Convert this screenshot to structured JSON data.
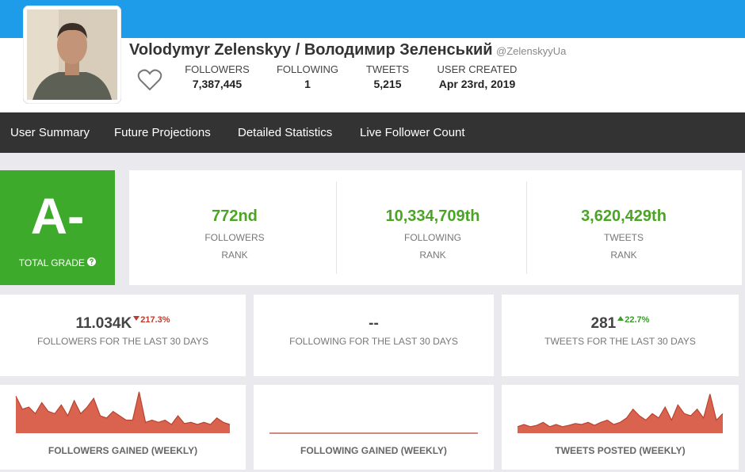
{
  "profile": {
    "name": "Volodymyr Zelenskyy / Володимир Зеленський",
    "handle": "@ZelenskyyUa",
    "stats": [
      {
        "label": "FOLLOWERS",
        "value": "7,387,445"
      },
      {
        "label": "FOLLOWING",
        "value": "1"
      },
      {
        "label": "TWEETS",
        "value": "5,215"
      },
      {
        "label": "USER CREATED",
        "value": "Apr 23rd, 2019"
      }
    ]
  },
  "nav": [
    "User Summary",
    "Future Projections",
    "Detailed Statistics",
    "Live Follower Count"
  ],
  "grade": {
    "value": "A-",
    "label": "TOTAL GRADE"
  },
  "ranks": [
    {
      "value": "772nd",
      "label": "FOLLOWERS",
      "sub": "RANK"
    },
    {
      "value": "10,334,709th",
      "label": "FOLLOWING",
      "sub": "RANK"
    },
    {
      "value": "3,620,429th",
      "label": "TWEETS",
      "sub": "RANK"
    }
  ],
  "last30": [
    {
      "value": "11.034K",
      "change": "217.3%",
      "direction": "down",
      "color": "#c0392b",
      "label": "FOLLOWERS FOR THE LAST 30 DAYS"
    },
    {
      "value": "--",
      "label": "FOLLOWING FOR THE LAST 30 DAYS"
    },
    {
      "value": "281",
      "change": "22.7%",
      "direction": "up",
      "color": "#3a9a2a",
      "label": "TWEETS FOR THE LAST 30 DAYS"
    }
  ],
  "charts": [
    {
      "type": "area",
      "title": "FOLLOWERS GAINED (WEEKLY)",
      "color": "#d9634f",
      "ylim": [
        0,
        100
      ],
      "values": [
        85,
        55,
        60,
        45,
        70,
        50,
        45,
        65,
        40,
        75,
        45,
        60,
        80,
        40,
        35,
        50,
        40,
        30,
        30,
        95,
        25,
        30,
        25,
        30,
        20,
        40,
        22,
        25,
        20,
        25,
        20,
        35,
        25,
        20
      ]
    },
    {
      "type": "area",
      "title": "FOLLOWING GAINED (WEEKLY)",
      "color": "#d9634f",
      "ylim": [
        0,
        100
      ],
      "values": [
        0,
        0,
        0,
        0,
        0,
        0,
        0,
        0,
        0,
        0
      ]
    },
    {
      "type": "area",
      "title": "TWEETS POSTED (WEEKLY)",
      "color": "#d9634f",
      "ylim": [
        0,
        100
      ],
      "values": [
        15,
        20,
        15,
        18,
        25,
        15,
        20,
        15,
        18,
        22,
        20,
        25,
        18,
        25,
        30,
        20,
        25,
        35,
        55,
        40,
        30,
        45,
        35,
        60,
        30,
        65,
        45,
        40,
        55,
        35,
        90,
        30,
        45
      ]
    }
  ]
}
